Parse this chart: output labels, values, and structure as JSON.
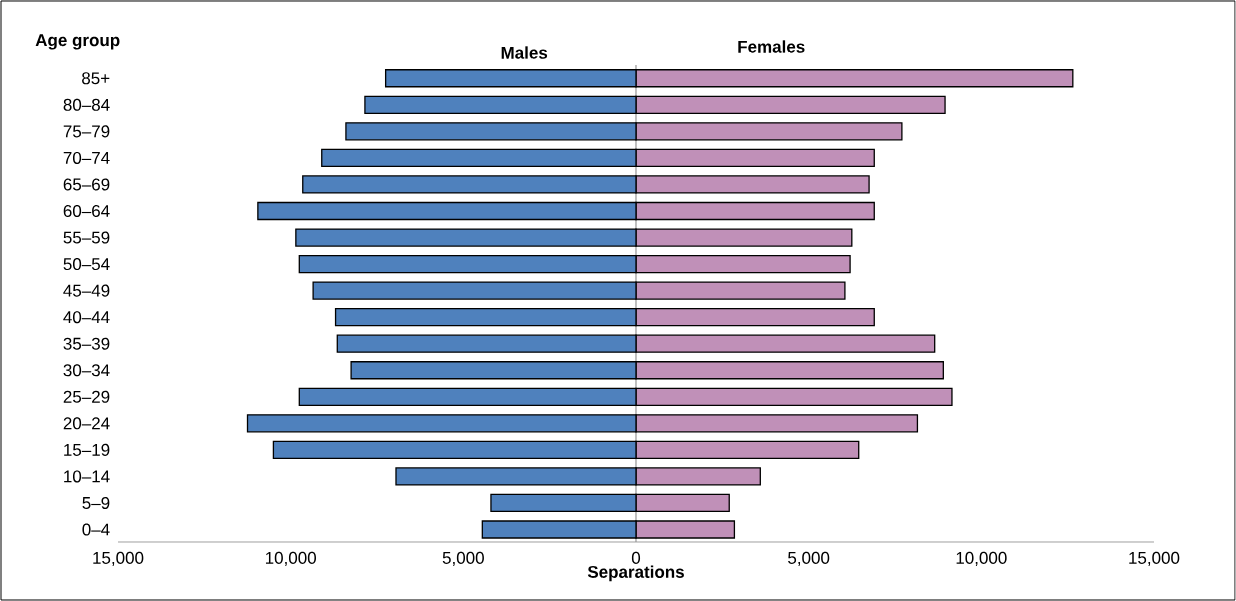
{
  "chart_data": {
    "type": "bar",
    "orientation": "horizontal",
    "xlabel": "Separations",
    "ylabel": "Age group",
    "categories": [
      "85+",
      "80–84",
      "75–79",
      "70–74",
      "65–69",
      "60–64",
      "55–59",
      "50–54",
      "45–49",
      "40–44",
      "35–39",
      "30–34",
      "25–29",
      "20–24",
      "15–19",
      "10–14",
      "5–9",
      "0–4"
    ],
    "series": [
      {
        "name": "Males",
        "color": "#4f81bd",
        "values": [
          -7250,
          -7850,
          -8400,
          -9100,
          -9650,
          -10950,
          -9850,
          -9750,
          -9350,
          -8700,
          -8650,
          -8250,
          -9750,
          -11250,
          -10500,
          -6950,
          -4200,
          -4450
        ]
      },
      {
        "name": "Females",
        "color": "#c090b8",
        "values": [
          12650,
          8950,
          7700,
          6900,
          6750,
          6900,
          6250,
          6200,
          6050,
          6900,
          8650,
          8900,
          9150,
          8150,
          6450,
          3600,
          2700,
          2850
        ]
      }
    ],
    "xlim": [
      -15000,
      15000
    ],
    "xticks": [
      {
        "value": -15000,
        "label": "15,000"
      },
      {
        "value": -10000,
        "label": "10,000"
      },
      {
        "value": -5000,
        "label": "5,000"
      },
      0,
      {
        "value": 5000,
        "label": "5,000"
      },
      {
        "value": 10000,
        "label": "10,000"
      },
      {
        "value": 15000,
        "label": "15,000"
      }
    ],
    "ref_lines": [
      {
        "axis": "x",
        "value": 0,
        "color": "#969696"
      }
    ],
    "stacked": true,
    "grid": false,
    "legend": false
  }
}
